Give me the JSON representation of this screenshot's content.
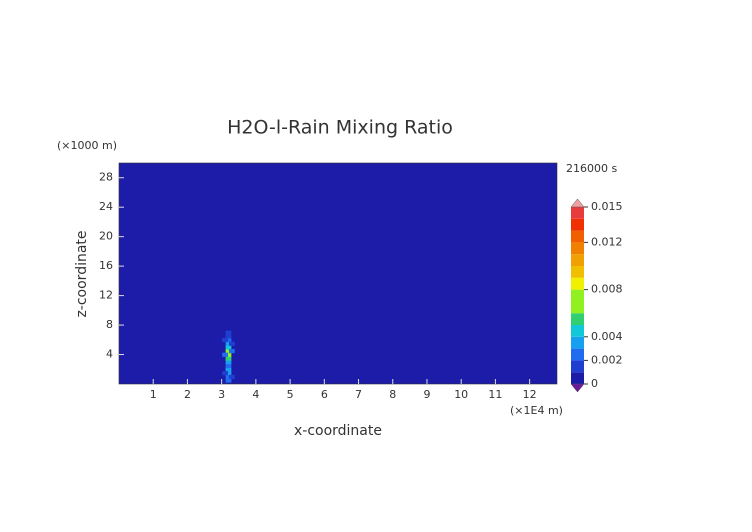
{
  "chart_data": {
    "type": "heatmap",
    "title": "H2O-l-Rain Mixing Ratio",
    "x_label": "x-coordinate",
    "y_label": "z-coordinate",
    "x_unit": "(×1E4 m)",
    "y_unit": "(×1000 m)",
    "time_label": "216000 s",
    "xlim": [
      0,
      12.8
    ],
    "ylim": [
      0,
      30
    ],
    "xticks": [
      1,
      2,
      3,
      4,
      5,
      6,
      7,
      8,
      9,
      10,
      11,
      12
    ],
    "yticks": [
      4,
      8,
      12,
      16,
      20,
      24,
      28
    ],
    "x": [
      3.2,
      3.2,
      3.2,
      3.2,
      3.2,
      3.2,
      3.2,
      3.2,
      3.2,
      3.2,
      3.2,
      3.2,
      3.2,
      3.2,
      3.1,
      3.1,
      3.1,
      3.3,
      3.3,
      3.3
    ],
    "y": [
      0.5,
      1,
      1.5,
      2,
      2.5,
      3,
      3.5,
      4,
      4.5,
      5,
      5.5,
      6,
      6.5,
      7,
      1.5,
      4,
      6,
      1,
      4.5,
      5.5
    ],
    "values": [
      0.002,
      0.0025,
      0.003,
      0.003,
      0.002,
      0.003,
      0.005,
      0.007,
      0.006,
      0.004,
      0.003,
      0.002,
      0.0015,
      0.001,
      0.0015,
      0.002,
      0.0015,
      0.0015,
      0.002,
      0.0015
    ],
    "colorbar": {
      "clim": [
        0,
        0.015
      ],
      "ticks": [
        0,
        0.002,
        0.004,
        0.008,
        0.012,
        0.015
      ],
      "levels": [
        0,
        0.001,
        0.002,
        0.003,
        0.004,
        0.005,
        0.006,
        0.008,
        0.009,
        0.01,
        0.011,
        0.012,
        0.013,
        0.014,
        0.015
      ],
      "colors": [
        "#1c1ca8",
        "#1f3fd0",
        "#1f6cf0",
        "#18a0f0",
        "#10c8d8",
        "#30d070",
        "#90f020",
        "#f0f000",
        "#f0c000",
        "#f0a000",
        "#f08000",
        "#f06000",
        "#f03000",
        "#e83c3c"
      ],
      "under_color": "#6a1a9a",
      "over_color": "#f0a0a0"
    }
  }
}
